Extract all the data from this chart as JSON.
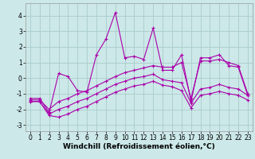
{
  "xlabel": "Windchill (Refroidissement éolien,°C)",
  "background_color": "#cce8e8",
  "grid_color": "#aacccc",
  "line_color": "#aa00aa",
  "x": [
    0,
    1,
    2,
    3,
    4,
    5,
    6,
    7,
    8,
    9,
    10,
    11,
    12,
    13,
    14,
    15,
    16,
    17,
    18,
    19,
    20,
    21,
    22,
    23
  ],
  "y_main": [
    -1.3,
    -1.3,
    -2.2,
    0.3,
    0.1,
    -0.8,
    -0.9,
    1.5,
    2.5,
    4.2,
    1.3,
    1.4,
    1.2,
    3.2,
    0.5,
    0.5,
    1.5,
    -1.5,
    1.3,
    1.3,
    1.5,
    0.8,
    0.7,
    -1.1
  ],
  "y_line1": [
    -1.4,
    -1.4,
    -2.0,
    -1.5,
    -1.3,
    -1.0,
    -0.8,
    -0.5,
    -0.2,
    0.1,
    0.35,
    0.5,
    0.65,
    0.8,
    0.7,
    0.7,
    1.0,
    -1.3,
    1.1,
    1.1,
    1.2,
    1.0,
    0.8,
    -1.0
  ],
  "y_line2": [
    -1.5,
    -1.5,
    -2.3,
    -2.0,
    -1.8,
    -1.5,
    -1.3,
    -1.0,
    -0.7,
    -0.4,
    -0.2,
    0.0,
    0.1,
    0.25,
    -0.1,
    -0.2,
    -0.3,
    -1.6,
    -0.7,
    -0.6,
    -0.4,
    -0.6,
    -0.7,
    -1.1
  ],
  "y_line3": [
    -1.5,
    -1.5,
    -2.4,
    -2.5,
    -2.3,
    -2.0,
    -1.8,
    -1.5,
    -1.2,
    -0.9,
    -0.7,
    -0.5,
    -0.4,
    -0.2,
    -0.45,
    -0.55,
    -0.8,
    -1.9,
    -1.1,
    -1.0,
    -0.85,
    -1.0,
    -1.1,
    -1.4
  ],
  "ylim": [
    -3.4,
    4.8
  ],
  "xlim": [
    -0.5,
    23.5
  ],
  "yticks": [
    -3,
    -2,
    -1,
    0,
    1,
    2,
    3,
    4
  ],
  "xticks": [
    0,
    1,
    2,
    3,
    4,
    5,
    6,
    7,
    8,
    9,
    10,
    11,
    12,
    13,
    14,
    15,
    16,
    17,
    18,
    19,
    20,
    21,
    22,
    23
  ],
  "xlabel_fontsize": 6.5,
  "tick_fontsize": 5.5,
  "linewidth": 0.8,
  "markersize": 2.5
}
